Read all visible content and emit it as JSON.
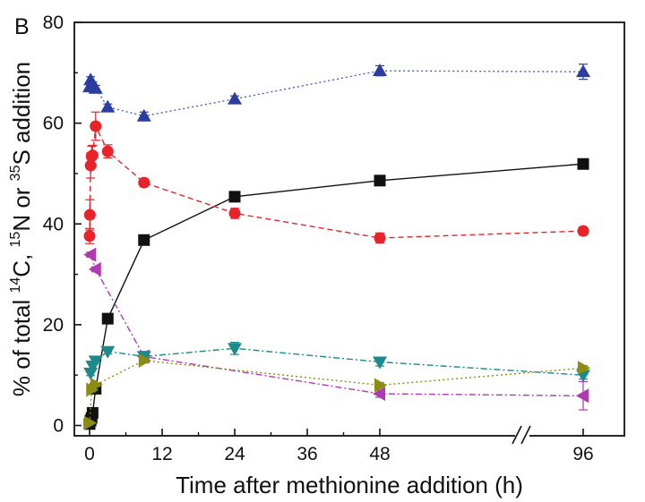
{
  "panel_label": "B",
  "chart_data": {
    "type": "line",
    "xlabel": "Time after methionine addition (h)",
    "ylabel": {
      "part1": "% of total ",
      "sup14": "14",
      "part2": "C, ",
      "sup15": "15",
      "part3": "N or ",
      "sup35": "35",
      "part4": "S addition"
    },
    "ylim": [
      0,
      80
    ],
    "yticks": [
      "0",
      "20",
      "40",
      "60",
      "80"
    ],
    "xticks": [
      "0",
      "12",
      "24",
      "36",
      "48",
      "96"
    ],
    "x_axis_break": "48-96",
    "series": [
      {
        "name": "squares",
        "marker": "square",
        "color": "#111111",
        "line_color": "#111111",
        "line_style": "solid",
        "x": [
          0,
          0.17,
          0.33,
          0.5,
          1,
          3,
          9,
          24,
          48,
          96
        ],
        "y": [
          0.3,
          1,
          1.5,
          2.5,
          7.3,
          21.2,
          36.8,
          45.4,
          48.6,
          51.9
        ],
        "err": [
          0,
          0,
          0,
          0,
          0,
          0,
          0,
          0.5,
          0.5,
          0.5
        ]
      },
      {
        "name": "circles",
        "marker": "circle",
        "color": "#e8232a",
        "line_color": "#e8232a",
        "line_style": "dashed",
        "x": [
          0,
          0.05,
          0.17,
          0.33,
          0.5,
          1,
          3,
          9,
          24,
          48,
          96
        ],
        "y": [
          37.6,
          41.8,
          51.6,
          53.4,
          53.6,
          59.4,
          54.4,
          48.2,
          42.1,
          37.2,
          38.6
        ],
        "err": [
          1.5,
          3,
          2.5,
          2,
          2,
          2.8,
          1.3,
          0.8,
          1,
          1,
          0.8
        ]
      },
      {
        "name": "up-triangles",
        "marker": "triangle-up",
        "color": "#2b3d9e",
        "line_color": "#4a5fd0",
        "line_style": "dotted",
        "x": [
          0,
          0.17,
          0.5,
          1,
          3,
          9,
          24,
          48,
          96
        ],
        "y": [
          67.2,
          68.6,
          67.6,
          66.9,
          63.2,
          61.4,
          64.8,
          70.4,
          70.2
        ],
        "err": [
          0.6,
          0.6,
          0.6,
          0.6,
          0.6,
          0.8,
          0.6,
          1,
          1.5
        ]
      },
      {
        "name": "left-triangles",
        "marker": "triangle-left",
        "color": "#b03ab0",
        "line_color": "#b03ab0",
        "line_style": "dashdot",
        "x": [
          0.17,
          1,
          9,
          48,
          96
        ],
        "y": [
          33.9,
          31,
          13.7,
          6.3,
          5.9
        ],
        "err": [
          0.5,
          0.5,
          1,
          0.7,
          2.8
        ]
      },
      {
        "name": "down-triangles",
        "marker": "triangle-down",
        "color": "#1a8a8a",
        "line_color": "#1a8a8a",
        "line_style": "dashdot",
        "x": [
          0.17,
          0.5,
          1,
          3,
          9,
          24,
          48,
          96
        ],
        "y": [
          10.4,
          11.8,
          12.8,
          14.7,
          13.7,
          15.3,
          12.6,
          10
        ],
        "err": [
          0.5,
          0.5,
          0.5,
          0.5,
          0.5,
          1.2,
          0.8,
          0.8
        ]
      },
      {
        "name": "right-triangles",
        "marker": "triangle-right",
        "color": "#8c8c10",
        "line_color": "#8c8c10",
        "line_style": "dotted",
        "x": [
          0,
          0.33,
          1,
          9,
          48,
          96
        ],
        "y": [
          0.5,
          7.1,
          8.1,
          12.9,
          8,
          11.4
        ],
        "err": [
          0,
          0.4,
          0.4,
          0.5,
          0.5,
          0.5
        ]
      }
    ]
  }
}
